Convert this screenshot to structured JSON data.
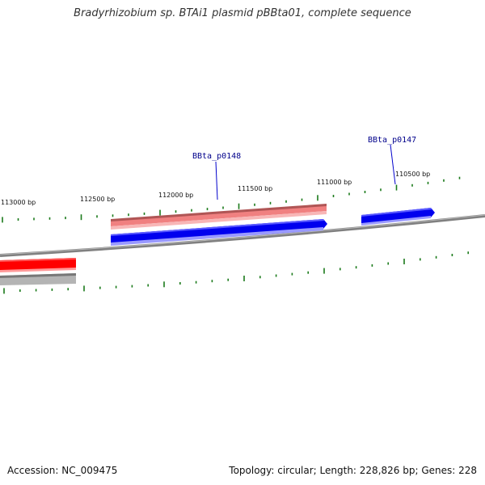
{
  "title": "Bradyrhizobium sp. BTAi1 plasmid pBBta01, complete sequence",
  "scale_labels": [
    "113000 bp",
    "112500 bp",
    "112000 bp",
    "111500 bp",
    "111000 bp",
    "110500 bp"
  ],
  "gene_labels": [
    "BBta_p0148",
    "BBta_p0147"
  ],
  "footer": {
    "accession": "Accession: NC_009475",
    "summary": "Topology: circular; Length: 228,826 bp; Genes: 228"
  },
  "colors": {
    "forward_gene": "#0000ee",
    "reverse_gene": "#ff0000",
    "reverse_gene_light": "#f08080",
    "backbone": "#808080",
    "tick": "#1a7a1a",
    "gene_label": "#00008b"
  }
}
